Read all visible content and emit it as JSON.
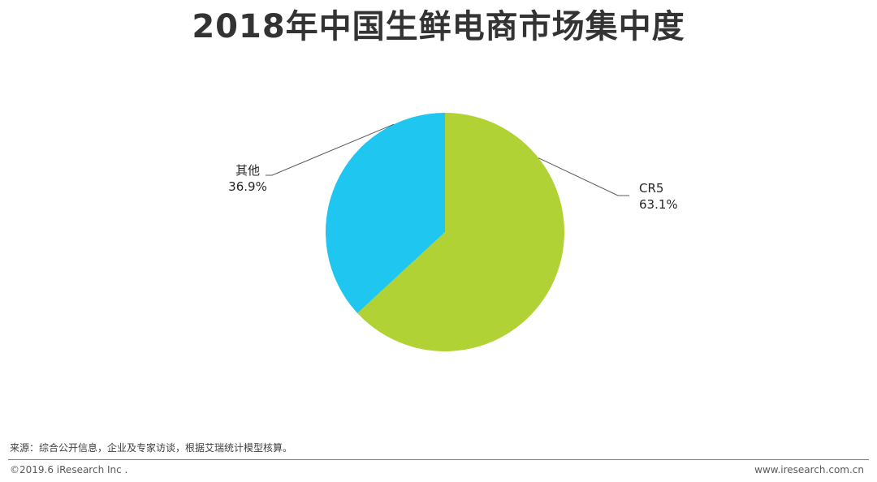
{
  "title": "2018年中国生鲜电商市场集中度",
  "chart_data": {
    "type": "pie",
    "slices": [
      {
        "label": "CR5",
        "value": 63.1,
        "value_label": "63.1%",
        "color": "#b1d235"
      },
      {
        "label": "其他",
        "value": 36.9,
        "value_label": "36.9%",
        "color": "#1fc6ef"
      }
    ],
    "start_angle_deg": 0,
    "direction": "clockwise",
    "leader_line_color": "#595959"
  },
  "footer": {
    "source": "来源：综合公开信息，企业及专家访谈，根据艾瑞统计模型核算。",
    "copyright": "©2019.6 iResearch Inc .",
    "website": "www.iresearch.com.cn"
  }
}
